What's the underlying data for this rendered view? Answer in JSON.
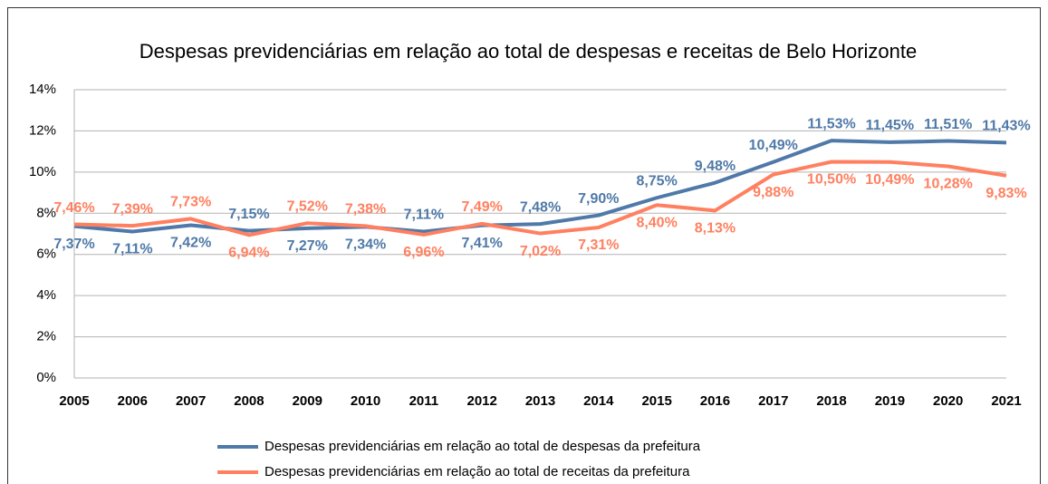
{
  "chart_data": {
    "type": "line",
    "title": "Despesas previdenciárias em relação ao total de despesas e receitas de Belo Horizonte",
    "categories": [
      "2005",
      "2006",
      "2007",
      "2008",
      "2009",
      "2010",
      "2011",
      "2012",
      "2013",
      "2014",
      "2015",
      "2016",
      "2017",
      "2018",
      "2019",
      "2020",
      "2021"
    ],
    "series": [
      {
        "name": "Despesas previdenciárias em relação ao total de despesas da prefeitura",
        "color": "#4f79a8",
        "values": [
          7.37,
          7.11,
          7.42,
          7.15,
          7.27,
          7.34,
          7.11,
          7.41,
          7.48,
          7.9,
          8.75,
          9.48,
          10.49,
          11.53,
          11.45,
          11.51,
          11.43
        ],
        "value_labels": [
          "7,37%",
          "7,11%",
          "7,42%",
          "7,15%",
          "7,27%",
          "7,34%",
          "7,11%",
          "7,41%",
          "7,48%",
          "7,90%",
          "8,75%",
          "9,48%",
          "10,49%",
          "11,53%",
          "11,45%",
          "11,51%",
          "11,43%"
        ]
      },
      {
        "name": "Despesas previdenciárias em relação ao total de receitas da prefeitura",
        "color": "#ff8060",
        "values": [
          7.46,
          7.39,
          7.73,
          6.94,
          7.52,
          7.38,
          6.96,
          7.49,
          7.02,
          7.31,
          8.4,
          8.13,
          9.88,
          10.5,
          10.49,
          10.28,
          9.83
        ],
        "value_labels": [
          "7,46%",
          "7,39%",
          "7,73%",
          "6,94%",
          "7,52%",
          "7,38%",
          "6,96%",
          "7,49%",
          "7,02%",
          "7,31%",
          "8,40%",
          "8,13%",
          "9,88%",
          "10,50%",
          "10,49%",
          "10,28%",
          "9,83%"
        ]
      }
    ],
    "ylim": [
      0,
      14
    ],
    "yticks": [
      {
        "value": 0,
        "label": "0%"
      },
      {
        "value": 2,
        "label": "2%"
      },
      {
        "value": 4,
        "label": "4%"
      },
      {
        "value": 6,
        "label": "6%"
      },
      {
        "value": 8,
        "label": "8%"
      },
      {
        "value": 10,
        "label": "10%"
      },
      {
        "value": 12,
        "label": "12%"
      },
      {
        "value": 14,
        "label": "14%"
      }
    ],
    "grid": true,
    "legend": "bottom"
  }
}
